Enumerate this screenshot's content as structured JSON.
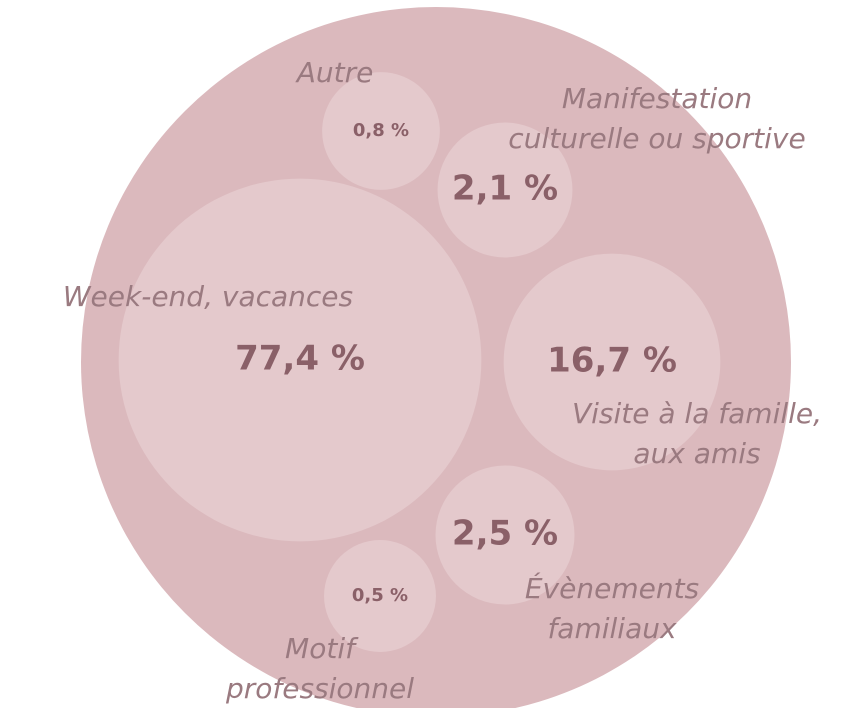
{
  "chart_data": {
    "type": "bubble",
    "categories": [
      "Week-end, vacances",
      "Visite à la famille,\naux amis",
      "Évènements\nfamiliaux",
      "Manifestation\nculturelle ou sportive",
      "Autre",
      "Motif\nprofessionnel"
    ],
    "values": [
      77.4,
      16.7,
      2.5,
      2.1,
      0.8,
      0.5
    ],
    "value_labels": [
      "77,4 %",
      "16,7 %",
      "2,5 %",
      "2,1 %",
      "0,8 %",
      "0,5 %"
    ],
    "color": "#e4c9cc"
  }
}
